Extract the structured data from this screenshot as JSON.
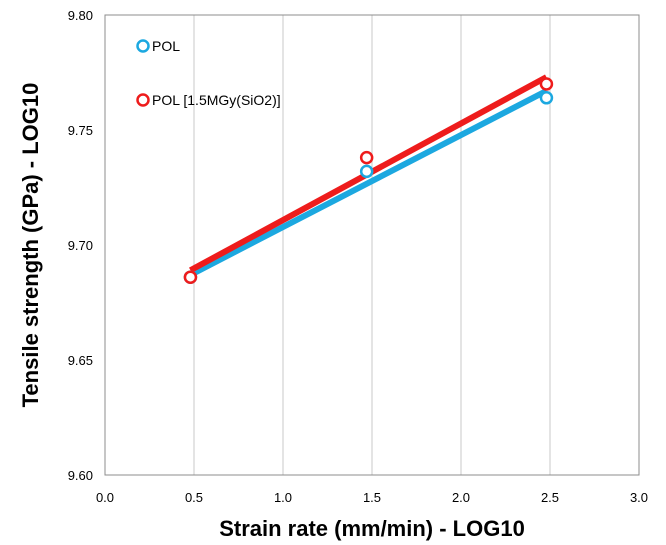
{
  "chart_data": {
    "type": "scatter",
    "title": "",
    "xlabel": "Strain rate (mm/min) - LOG10",
    "ylabel": "Tensile strength (GPa) - LOG10",
    "xlim": [
      0.0,
      3.0
    ],
    "ylim": [
      9.6,
      9.8
    ],
    "xticks": [
      "0.0",
      "0.5",
      "1.0",
      "1.5",
      "2.0",
      "2.5",
      "3.0"
    ],
    "yticks": [
      "9.60",
      "9.65",
      "9.70",
      "9.75",
      "9.80"
    ],
    "grid": "vertical",
    "legend_position": "top-left",
    "series": [
      {
        "name": "POL",
        "color": "#1CA8E0",
        "points": [
          {
            "x": 0.48,
            "y": 9.686
          },
          {
            "x": 1.47,
            "y": 9.732
          },
          {
            "x": 2.48,
            "y": 9.764
          }
        ],
        "trendline": [
          {
            "x": 0.48,
            "y": 9.687
          },
          {
            "x": 2.48,
            "y": 9.767
          }
        ]
      },
      {
        "name": "POL [1.5MGy(SiO2)]",
        "color": "#EE1C1C",
        "points": [
          {
            "x": 0.48,
            "y": 9.686
          },
          {
            "x": 1.47,
            "y": 9.738
          },
          {
            "x": 2.48,
            "y": 9.77
          }
        ],
        "trendline": [
          {
            "x": 0.48,
            "y": 9.689
          },
          {
            "x": 2.48,
            "y": 9.773
          }
        ]
      }
    ]
  }
}
